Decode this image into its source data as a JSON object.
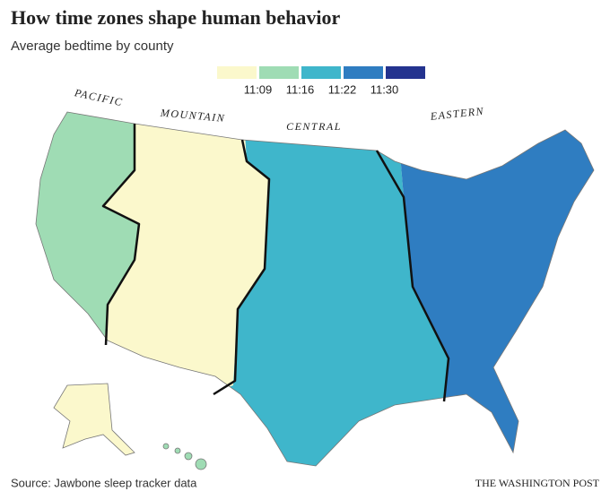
{
  "title": "How time zones shape human behavior",
  "subtitle": "Average bedtime by county",
  "legend": {
    "colors": [
      "#fbf8cc",
      "#9fdcb4",
      "#3fb6cb",
      "#2f7dc1",
      "#24338f"
    ],
    "breaks": [
      "11:09",
      "11:16",
      "11:22",
      "11:30"
    ]
  },
  "zones": [
    "PACIFIC",
    "MOUNTAIN",
    "CENTRAL",
    "EASTERN"
  ],
  "source": "Source: Jawbone sleep tracker data",
  "credit": "THE WASHINGTON POST"
}
